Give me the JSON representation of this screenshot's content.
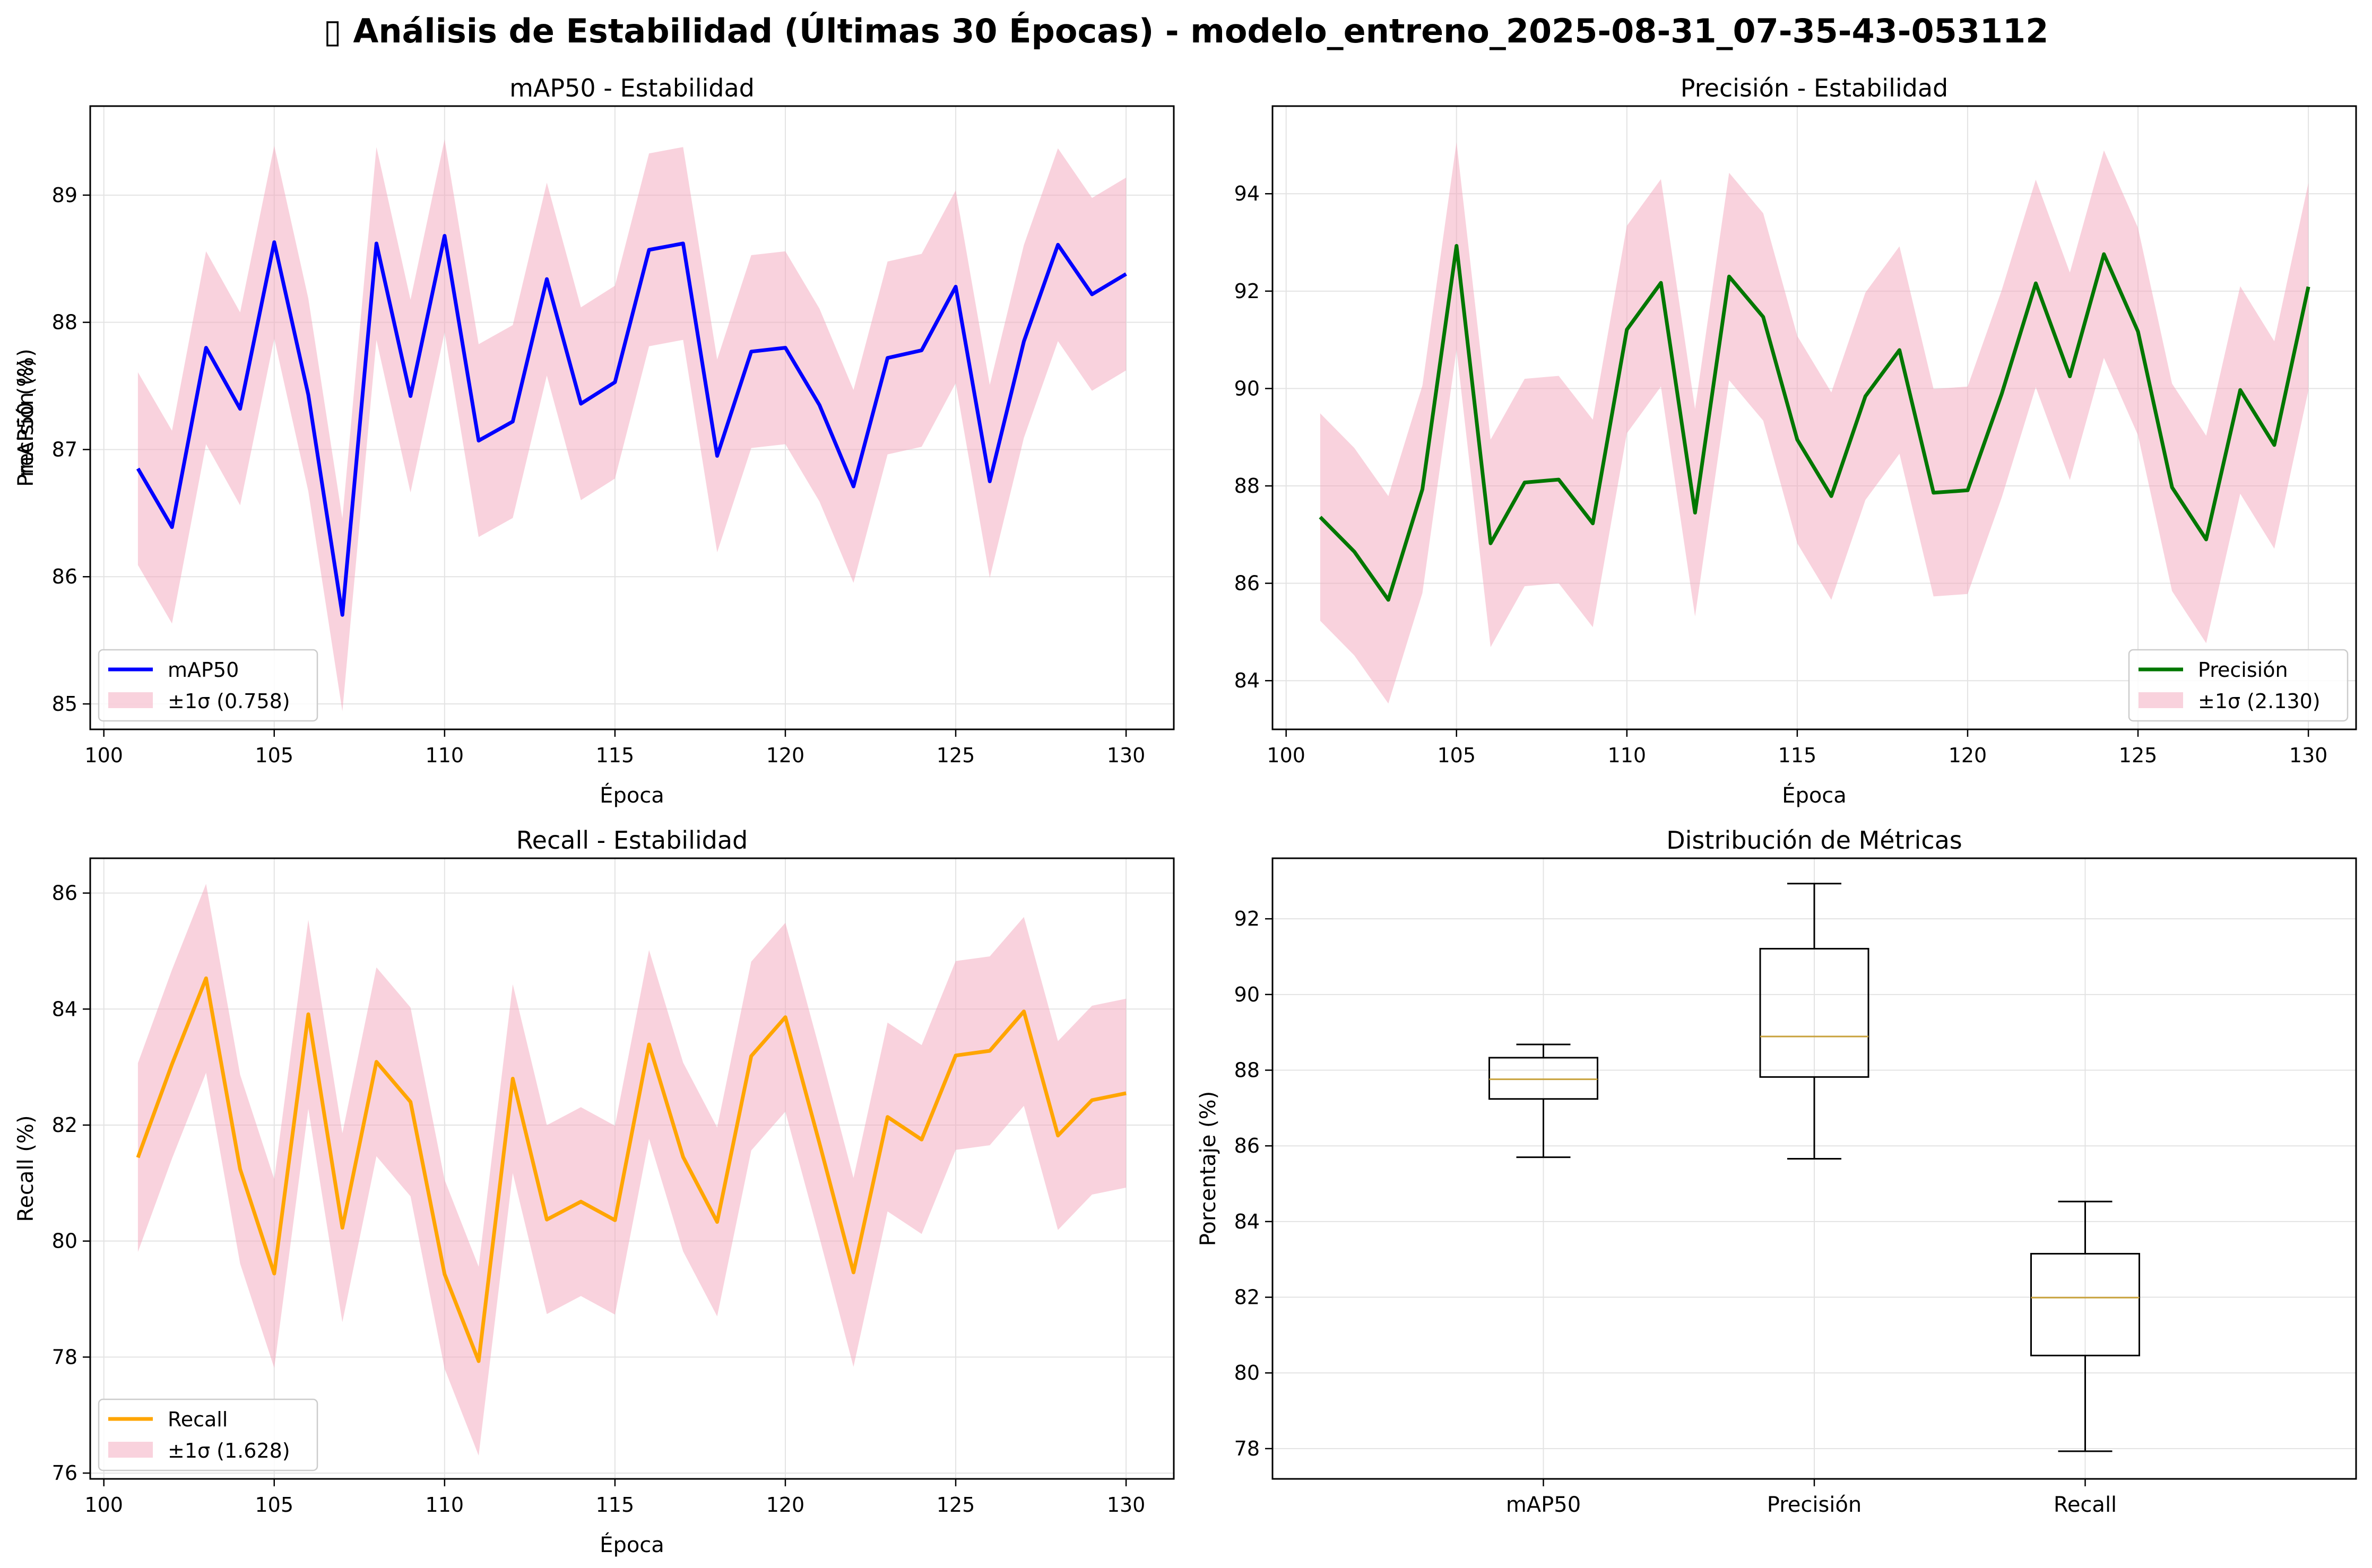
{
  "suptitle": "▯ Análisis de Estabilidad (Últimas 30 Épocas) - modelo_entreno_2025-08-31_07-35-43-053112",
  "chart_data": [
    {
      "type": "line",
      "title": "mAP50 - Estabilidad",
      "xlabel": "Época",
      "ylabel": "mAP50 (%)",
      "xlim": [
        99.6,
        131.4
      ],
      "ylim": [
        84.8,
        89.7
      ],
      "xticks": [
        100,
        105,
        110,
        115,
        120,
        125,
        130
      ],
      "yticks": [
        85,
        86,
        87,
        88,
        89
      ],
      "x": [
        101,
        102,
        103,
        104,
        105,
        106,
        107,
        108,
        109,
        110,
        111,
        112,
        113,
        114,
        115,
        116,
        117,
        118,
        119,
        120,
        121,
        122,
        123,
        124,
        125,
        126,
        127,
        128,
        129,
        130
      ],
      "series": [
        {
          "name": "mAP50",
          "color": "#0000ff",
          "values": [
            86.85,
            86.39,
            87.8,
            87.32,
            88.63,
            87.43,
            85.7,
            88.62,
            87.42,
            88.68,
            87.07,
            87.22,
            88.34,
            87.36,
            87.53,
            88.57,
            88.62,
            86.95,
            87.77,
            87.8,
            87.35,
            86.71,
            87.72,
            87.78,
            88.28,
            86.75,
            87.85,
            88.61,
            88.22,
            88.38
          ]
        }
      ],
      "band": {
        "name": "±1σ (0.758)",
        "sigma": 0.758,
        "color": "#f4a6bc"
      },
      "legend": "lower left",
      "grid": true
    },
    {
      "type": "line",
      "title": "Precisión - Estabilidad",
      "xlabel": "Época",
      "ylabel": "Precisión (%)",
      "xlim": [
        99.6,
        131.4
      ],
      "ylim": [
        83.0,
        95.8
      ],
      "xticks": [
        100,
        105,
        110,
        115,
        120,
        125,
        130
      ],
      "yticks": [
        84,
        86,
        88,
        90,
        92,
        94
      ],
      "x": [
        101,
        102,
        103,
        104,
        105,
        106,
        107,
        108,
        109,
        110,
        111,
        112,
        113,
        114,
        115,
        116,
        117,
        118,
        119,
        120,
        121,
        122,
        123,
        124,
        125,
        126,
        127,
        128,
        129,
        130
      ],
      "series": [
        {
          "name": "Precisión",
          "color": "#007700",
          "values": [
            87.36,
            86.65,
            85.66,
            87.93,
            92.93,
            86.82,
            88.07,
            88.13,
            87.23,
            91.21,
            92.17,
            87.45,
            92.3,
            91.47,
            88.95,
            87.79,
            89.84,
            90.79,
            87.86,
            87.91,
            89.89,
            92.16,
            90.25,
            92.76,
            91.17,
            87.97,
            86.9,
            89.97,
            88.84,
            92.09
          ]
        }
      ],
      "band": {
        "name": "±1σ (2.130)",
        "sigma": 2.13,
        "color": "#f4a6bc"
      },
      "legend": "lower right",
      "grid": true
    },
    {
      "type": "line",
      "title": "Recall - Estabilidad",
      "xlabel": "Época",
      "ylabel": "Recall (%)",
      "xlim": [
        99.6,
        131.4
      ],
      "ylim": [
        75.9,
        86.6
      ],
      "xticks": [
        100,
        105,
        110,
        115,
        120,
        125,
        130
      ],
      "yticks": [
        76,
        78,
        80,
        82,
        84,
        86
      ],
      "x": [
        101,
        102,
        103,
        104,
        105,
        106,
        107,
        108,
        109,
        110,
        111,
        112,
        113,
        114,
        115,
        116,
        117,
        118,
        119,
        120,
        121,
        122,
        123,
        124,
        125,
        126,
        127,
        128,
        129,
        130
      ],
      "series": [
        {
          "name": "Recall",
          "color": "#ffa500",
          "values": [
            81.44,
            83.05,
            84.53,
            81.24,
            79.44,
            83.91,
            80.23,
            83.09,
            82.4,
            79.43,
            77.93,
            82.8,
            80.37,
            80.68,
            80.36,
            83.39,
            81.45,
            80.33,
            83.19,
            83.86,
            81.69,
            79.46,
            82.14,
            81.75,
            83.2,
            83.28,
            83.96,
            81.82,
            82.43,
            82.55
          ]
        }
      ],
      "band": {
        "name": "±1σ (1.628)",
        "sigma": 1.628,
        "color": "#f4a6bc"
      },
      "legend": "lower left",
      "grid": true
    },
    {
      "type": "box",
      "title": "Distribución de Métricas",
      "ylabel": "Porcentaje (%)",
      "ylim": [
        77.2,
        93.6
      ],
      "yticks": [
        78,
        80,
        82,
        84,
        86,
        88,
        90,
        92
      ],
      "categories": [
        "mAP50",
        "Precisión",
        "Recall"
      ],
      "boxes": [
        {
          "min": 85.7,
          "q1": 87.24,
          "median": 87.76,
          "q3": 88.33,
          "max": 88.68
        },
        {
          "min": 85.66,
          "q1": 87.82,
          "median": 88.89,
          "q3": 91.21,
          "max": 92.93
        },
        {
          "min": 77.93,
          "q1": 80.46,
          "median": 81.99,
          "q3": 83.15,
          "max": 84.53
        }
      ],
      "median_color": "#c8a23c",
      "grid": true
    }
  ]
}
